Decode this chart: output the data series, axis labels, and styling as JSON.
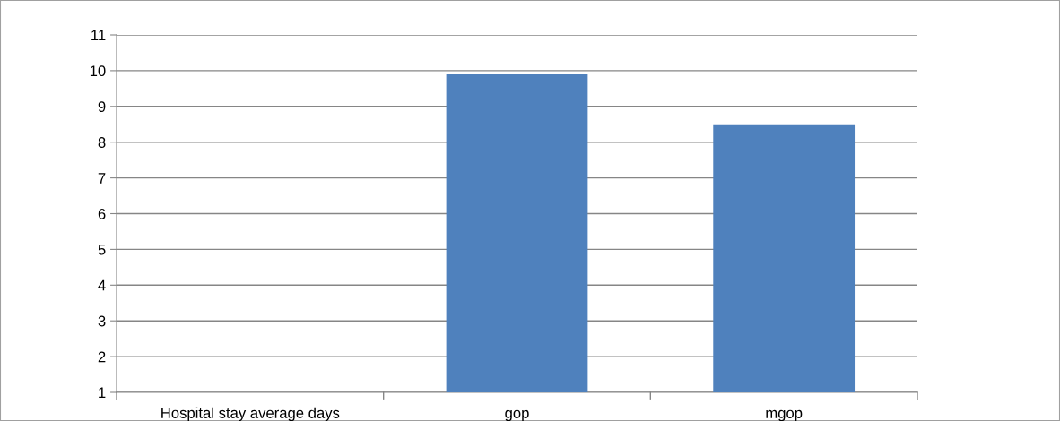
{
  "chart_data": {
    "type": "bar",
    "categories": [
      "Hospital stay average days",
      "gop",
      "mgop"
    ],
    "values": [
      null,
      9.9,
      8.5
    ],
    "color": "#4f81bd",
    "ylim": [
      1,
      11
    ],
    "yticks": [
      1,
      2,
      3,
      4,
      5,
      6,
      7,
      8,
      9,
      10,
      11
    ],
    "grid": "y"
  }
}
